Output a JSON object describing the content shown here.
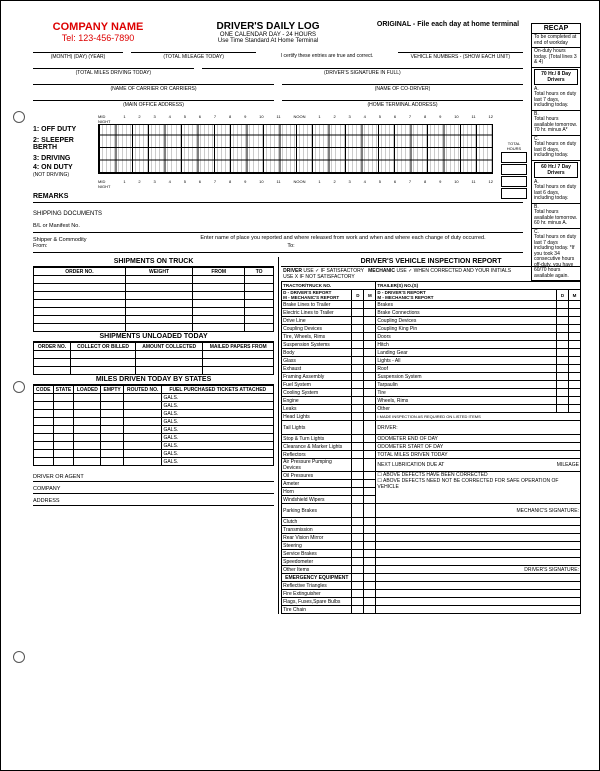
{
  "company": {
    "name": "COMPANY NAME",
    "tel": "Tel: 123-456-7890"
  },
  "header": {
    "title": "DRIVER'S DAILY LOG",
    "sub1": "ONE CALENDAR DAY - 24 HOURS",
    "sub2": "Use Time Standard At Home Terminal",
    "original": "ORIGINAL - File each day at home terminal"
  },
  "recap": {
    "title": "RECAP",
    "intro": "To be completed at end of workday",
    "onduty_today": "On-duty hours today. (Total lines 3 & 4)",
    "box70": "70 Hr./ 8 Day Drivers",
    "a70": "Total hours on duty last 7 days, including today.",
    "b70": "Total hours available tomorrow. 70 hr. minus A*",
    "c70": "Total hours on duty last 8 days, including today.",
    "box60": "60 Hr./ 7 Day Drivers",
    "a60": "Total hours on duty last 6 days, including today.",
    "b60": "Total hours available tomorrow. 60 hr. minus A.",
    "c60": "Total hours on duty last 7 days including today. *If you took 34 consecutive hours off-duty, you have 60/70 hours available again."
  },
  "fields": {
    "date": "(MONTH)   (DAY)   (YEAR)",
    "total_mileage": "(TOTAL MILEAGE TODAY)",
    "certify": "I certify these entries are true and correct.",
    "vehicle_nums": "VEHICLE NUMBERS - (SHOW EACH UNIT)",
    "miles_driving": "(TOTAL MILES DRIVING TODAY)",
    "sig": "(DRIVER'S SIGNATURE IN FULL)",
    "carrier": "(NAME OF CARRIER OR CARRIERS)",
    "codriver": "(NAME OF CO-DRIVER)",
    "main_office": "(MAIN OFFICE ADDRESS)",
    "home_terminal": "(HOME TERMINAL ADDRESS)"
  },
  "grid": {
    "mid_night": "MID\nNIGHT",
    "noon": "NOON",
    "total": "TOTAL HOURS",
    "hours": [
      "1",
      "2",
      "3",
      "4",
      "5",
      "6",
      "7",
      "8",
      "9",
      "10",
      "11",
      "NOON",
      "1",
      "2",
      "3",
      "4",
      "5",
      "6",
      "7",
      "8",
      "9",
      "10",
      "11",
      "12"
    ],
    "r1": "1: OFF DUTY",
    "r2": "2: SLEEPER BERTH",
    "r3": "3: DRIVING",
    "r4a": "4: ON DUTY",
    "r4b": "(NOT DRIVING)",
    "remarks": "REMARKS"
  },
  "shipping": {
    "docs": "SHIPPING DOCUMENTS",
    "bl": "B/L or Manifest No.",
    "shipper": "Shipper & Commodity",
    "from": "From:",
    "to": "To:",
    "instr": "Enter name of place you reported and where released from work and when and where each change of duty occurred."
  },
  "shipments_truck": {
    "hdr": "SHIPMENTS ON TRUCK",
    "cols": [
      "ORDER NO.",
      "WEIGHT",
      "FROM",
      "TO"
    ]
  },
  "unloaded": {
    "hdr": "SHIPMENTS UNLOADED TODAY",
    "cols": [
      "ORDER NO.",
      "COLLECT OR BILLED",
      "AMOUNT COLLECTED",
      "MAILED PAPERS FROM"
    ]
  },
  "miles_states": {
    "hdr": "MILES DRIVEN TODAY BY STATES",
    "cols": [
      "CODE",
      "STATE",
      "LOADED",
      "EMPTY",
      "ROUTED NO.",
      "FUEL PURCHASED TICKETS ATTACHED"
    ],
    "gals": "GALS."
  },
  "bottom": {
    "driver_agent": "DRIVER OR AGENT",
    "company": "COMPANY",
    "address": "ADDRESS"
  },
  "dvir": {
    "title": "DRIVER'S VEHICLE INSPECTION REPORT",
    "driver_lbl": "DRIVER",
    "mech_lbl": "MECHANIC",
    "use_sat": "USE ✓ IF SATISFACTORY",
    "use_x": "USE X  IF NOT SATISFACTORY",
    "use_corr": "USE ✓ WHEN CORRECTED AND YOUR INITIALS",
    "tractor": "TRACTOR/TRUCK NO.",
    "trailers": "TRAILER(S) NO.(S)",
    "d_report": "D - DRIVER'S REPORT",
    "m_report": "M - MECHANIC'S REPORT",
    "d": "D",
    "m": "M",
    "left": [
      "Brake Lines to Trailer",
      "Electric Lines to Trailer",
      "Drive Line",
      "Coupling Devices",
      "Tire, Wheels, Rims",
      "Suspension Systems",
      "Body",
      "Glass",
      "Exhaust",
      "Framing Assembly",
      "Fuel System",
      "Cooling System",
      "Engine",
      "Leaks",
      "Head Lights",
      "Tail Lights",
      "Stop & Turn Lights",
      "Clearance & Marker Lights",
      "Reflectors",
      "Air Pressure Pumping Devices",
      "Oil Pressures",
      "Ameter",
      "Horn",
      "Windshield Wipers",
      "Parking Brakes",
      "Clutch",
      "Transmission",
      "Rear Vision Mirror",
      "Steering",
      "Service Brakes",
      "Speedometer",
      "Other Items"
    ],
    "right": [
      "Brakes",
      "Brake Connections",
      "Coupling Devices",
      "Coupling King Pin",
      "Doors",
      "Hitch",
      "Landing Gear",
      "Lights - All",
      "Roof",
      "Suspension System",
      "Tarpaulin",
      "Tire",
      "Wheels, Rims",
      "Other"
    ],
    "emerg_hdr": "EMERGENCY EQUIPMENT",
    "emerg": [
      "Reflective Triangles",
      "Fire Extinguisher",
      "Flags, Fuses,Spare Bulbs",
      "Tire Chain"
    ],
    "made_insp": "I MADE INSPECTION AS REQUIRED ON LISTED ITEMS",
    "driver_sig": "DRIVER:",
    "odo_end": "ODOMETER END OF DAY",
    "odo_start": "ODOMETER START OF DAY",
    "miles_today": "TOTAL MILES DRIVEN TODAY",
    "lube": "NEXT LUBRICATION DUE AT",
    "mileage": "MILEAGE",
    "cb1": "☐ ABOVE DEFECTS HAVE BEEN CORRECTED",
    "cb2": "☐ ABOVE DEFECTS NEED NOT BE CORRECTED FOR SAFE OPERATION OF VEHICLE",
    "mech_sig": "MECHANIC'S SIGNATURE:",
    "drv_sig2": "DRIVER'S SIGNATURE:"
  }
}
